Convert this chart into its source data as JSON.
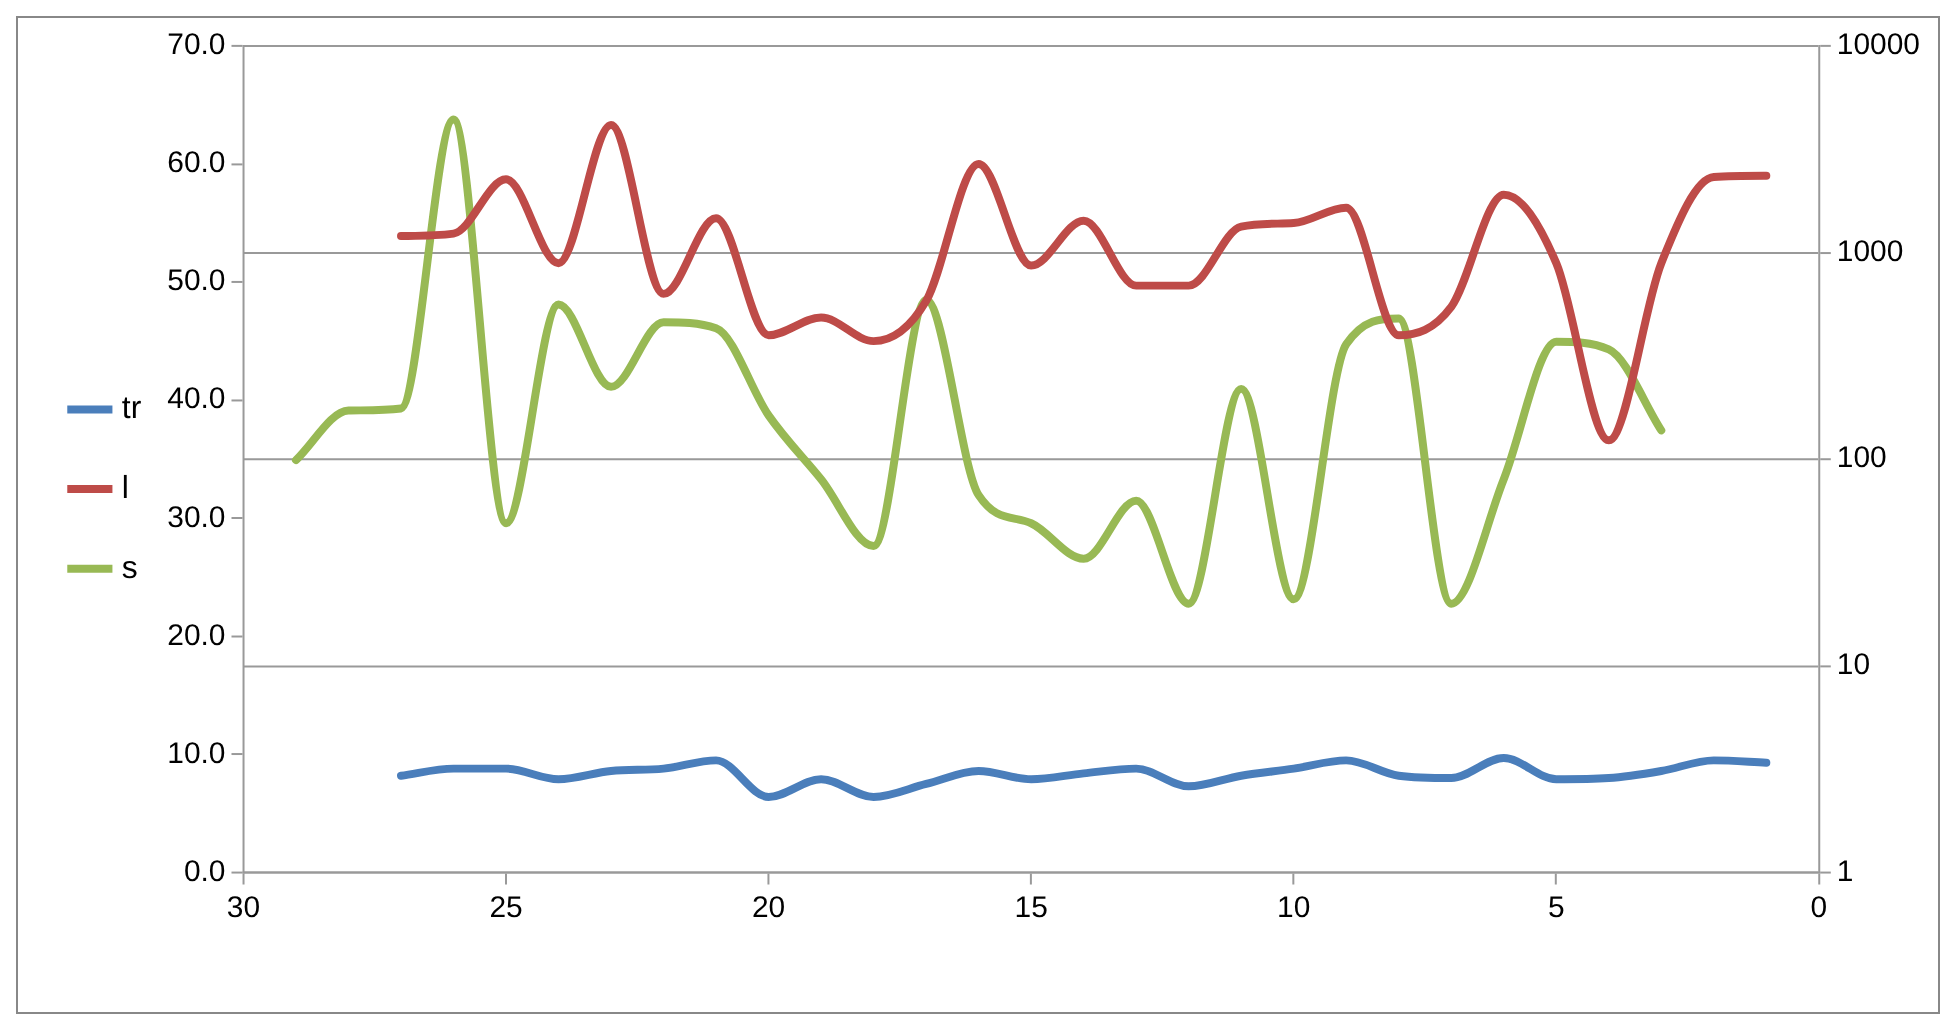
{
  "chart_data": {
    "type": "line",
    "x": [
      1,
      2,
      3,
      4,
      5,
      6,
      7,
      8,
      9,
      10,
      11,
      12,
      13,
      14,
      15,
      16,
      17,
      18,
      19,
      20,
      21,
      22,
      23,
      24,
      25,
      26,
      27
    ],
    "series": [
      {
        "name": "tr",
        "color": "#4a7ebb",
        "values": [
          9.3,
          9.5,
          8.6,
          8.0,
          7.9,
          9.7,
          8.0,
          8.2,
          9.5,
          8.8,
          8.2,
          7.3,
          8.8,
          8.4,
          7.9,
          8.6,
          7.5,
          6.4,
          7.9,
          6.4,
          9.5,
          8.8,
          8.6,
          7.9,
          8.8,
          8.8,
          8.2
        ]
      },
      {
        "name": "l",
        "color": "#be4b48",
        "values": [
          59.0,
          58.9,
          51.6,
          36.6,
          51.6,
          57.4,
          47.9,
          45.5,
          56.3,
          55.0,
          54.7,
          49.7,
          49.7,
          55.2,
          51.4,
          60.0,
          48.4,
          45.0,
          47.0,
          45.5,
          55.4,
          49.0,
          63.3,
          51.6,
          58.7,
          54.1,
          53.9
        ]
      },
      {
        "name": "s",
        "color": "#98b954",
        "axis": "y2",
        "x": [
          3,
          4,
          5,
          6,
          7,
          8,
          9,
          10,
          11,
          12,
          13,
          14,
          15,
          16,
          17,
          18,
          19,
          20,
          21,
          22,
          23,
          24,
          25,
          26,
          27,
          28,
          29
        ],
        "values": [
          138,
          340,
          370,
          80,
          20,
          480,
          360,
          21,
          219,
          20,
          63,
          33,
          49,
          67,
          590,
          38,
          80,
          163,
          430,
          460,
          224,
          560,
          49,
          4400,
          176,
          172,
          99
        ]
      }
    ],
    "xlim": [
      30,
      0
    ],
    "xticks": [
      30,
      25,
      20,
      15,
      10,
      5,
      0
    ],
    "ylim": [
      0,
      70
    ],
    "yticks": [
      {
        "value": 0,
        "label": "0.0"
      },
      {
        "value": 10,
        "label": "10.0"
      },
      {
        "value": 20,
        "label": "20.0"
      },
      {
        "value": 30,
        "label": "30.0"
      },
      {
        "value": 40,
        "label": "40.0"
      },
      {
        "value": 50,
        "label": "50.0"
      },
      {
        "value": 60,
        "label": "60.0"
      },
      {
        "value": 70,
        "label": "70.0"
      }
    ],
    "y2lim": [
      1,
      10000
    ],
    "y2ticks": [
      1,
      10,
      100,
      1000,
      10000
    ],
    "log": "y2",
    "grid": "y2",
    "legend": "left",
    "marker": "none",
    "line_style": "solid"
  }
}
